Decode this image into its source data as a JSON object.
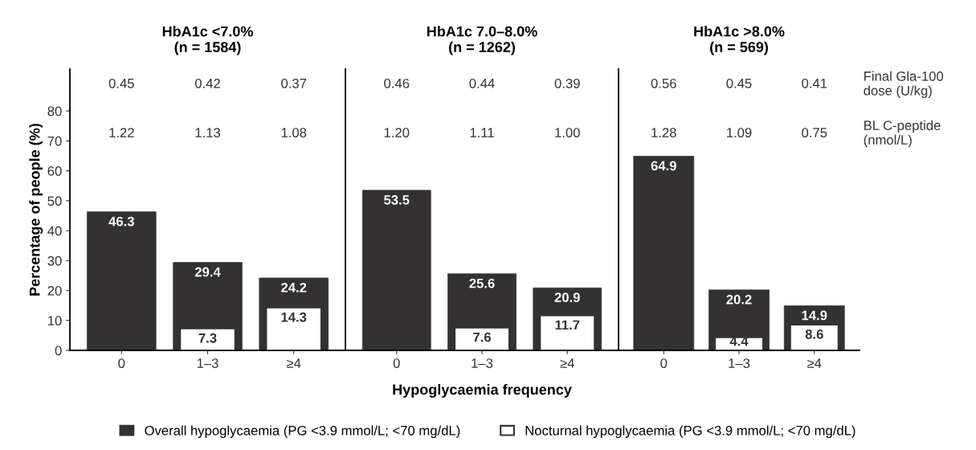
{
  "chart_data": [
    {
      "type": "bar",
      "title": "HbA1c <7.0%\n(n = 1584)",
      "ylabel": "Percentage of people (%)",
      "categories": [
        "0",
        "1–3",
        "≥4"
      ],
      "ylim": [
        0,
        94
      ],
      "yticks": [
        0,
        10,
        20,
        30,
        40,
        50,
        60,
        70,
        80
      ],
      "data_labels": true,
      "legend": "bottom",
      "annotations": [
        "0.45",
        "0.42",
        "0.37",
        "1.22",
        "1.13",
        "1.08"
      ],
      "series": [
        {
          "name": "Overall hypoglycaemia (PG <3.9 mmol/L; <70 mg/dL)",
          "color": "#333132",
          "values": [
            46.3,
            29.4,
            24.2
          ]
        },
        {
          "name": "Nocturnal hypoglycaemia (PG <3.9 mmol/L; <70 mg/dL)",
          "color": "#ffffff",
          "values": [
            null,
            7.3,
            14.3
          ]
        }
      ]
    },
    {
      "type": "bar",
      "title": "HbA1c 7.0–8.0%\n(n = 1262)",
      "xlabel": "Hypoglycaemia frequency",
      "categories": [
        "0",
        "1–3",
        "≥4"
      ],
      "ylim": [
        0,
        94
      ],
      "tick_labels": "x",
      "data_labels": true,
      "annotations": [
        "0.46",
        "0.44",
        "0.39",
        "1.20",
        "1.11",
        "1.00"
      ],
      "series": [
        {
          "color": "#333132",
          "values": [
            53.5,
            25.6,
            20.9
          ]
        },
        {
          "color": "#ffffff",
          "values": [
            null,
            7.6,
            11.7
          ]
        }
      ]
    },
    {
      "type": "bar",
      "title": "HbA1c >8.0%\n(n = 569)",
      "categories": [
        "0",
        "1–3",
        "≥4"
      ],
      "ylim": [
        0,
        94
      ],
      "tick_labels": "x",
      "data_labels": true,
      "annotations": [
        "0.56",
        "0.45",
        "0.41",
        "1.28",
        "1.09",
        "0.75",
        "Final Gla-100\ndose (U/kg)",
        "BL C-peptide\n(nmol/L)"
      ],
      "series": [
        {
          "color": "#333132",
          "values": [
            64.9,
            20.2,
            14.9
          ]
        },
        {
          "color": "#ffffff",
          "values": [
            null,
            4.4,
            8.6
          ]
        }
      ]
    }
  ]
}
